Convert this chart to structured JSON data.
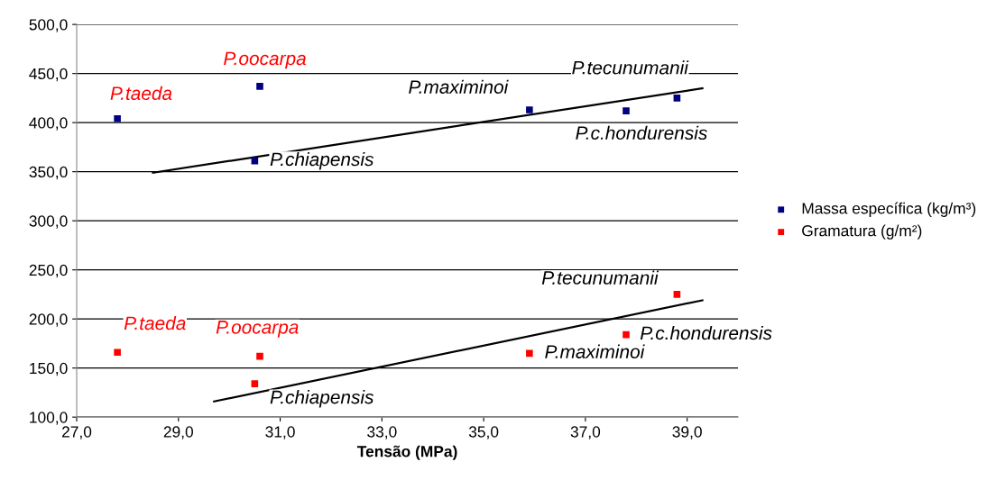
{
  "chart_data": {
    "type": "scatter",
    "xlabel": "Tensão (MPa)",
    "xlim": [
      27,
      40
    ],
    "xticks": [
      {
        "value": 27,
        "label": "27,0"
      },
      {
        "value": 29,
        "label": "29,0"
      },
      {
        "value": 31,
        "label": "31,0"
      },
      {
        "value": 33,
        "label": "33,0"
      },
      {
        "value": 35,
        "label": "35,0"
      },
      {
        "value": 37,
        "label": "37,0"
      },
      {
        "value": 39,
        "label": "39,0"
      }
    ],
    "ylim": [
      100,
      500
    ],
    "yticks": [
      {
        "value": 100,
        "label": "100,0"
      },
      {
        "value": 150,
        "label": "150,0"
      },
      {
        "value": 200,
        "label": "200,0"
      },
      {
        "value": 250,
        "label": "250,0"
      },
      {
        "value": 300,
        "label": "300,0"
      },
      {
        "value": 350,
        "label": "350,0"
      },
      {
        "value": 400,
        "label": "400,0"
      },
      {
        "value": 450,
        "label": "450,0"
      },
      {
        "value": 500,
        "label": "500,0"
      }
    ],
    "grid": "y",
    "legend": "right",
    "marker": "square",
    "series": [
      {
        "name": "Massa específica (kg/m³)",
        "color": "#000080",
        "x": [
          27.8,
          30.5,
          30.6,
          35.9,
          37.8,
          38.8
        ],
        "values": [
          404,
          361,
          437,
          413,
          412,
          425
        ]
      },
      {
        "name": "Gramatura (g/m²)",
        "color": "#ff0000",
        "x": [
          27.8,
          30.5,
          30.6,
          35.9,
          37.8,
          38.8
        ],
        "values": [
          166,
          134,
          162,
          165,
          184,
          225
        ]
      },
      {
        "type": "line",
        "marker": "none",
        "color": "#000000",
        "x": [
          28.5,
          39.3
        ],
        "values": [
          349,
          435
        ]
      },
      {
        "type": "line",
        "marker": "none",
        "color": "#000000",
        "x": [
          29.7,
          39.3
        ],
        "values": [
          116,
          219
        ]
      }
    ],
    "annotations": [
      {
        "text": "P.taeda",
        "x": 27.8,
        "y": 404
      },
      {
        "text": "P.oocarpa",
        "x": 30.6,
        "y": 437
      },
      {
        "text": "P.chiapensis",
        "x": 30.5,
        "y": 361
      },
      {
        "text": "P.maximinoi",
        "x": 35.9,
        "y": 413
      },
      {
        "text": "P.tecunumanii",
        "x": 38.8,
        "y": 425
      },
      {
        "text": "P.c.hondurensis",
        "x": 37.8,
        "y": 412
      },
      {
        "text": "P.taeda",
        "x": 27.8,
        "y": 166
      },
      {
        "text": "P.oocarpa",
        "x": 30.6,
        "y": 162
      },
      {
        "text": "P.chiapensis",
        "x": 30.5,
        "y": 134
      },
      {
        "text": "P.maximinoi",
        "x": 35.9,
        "y": 165
      },
      {
        "text": "P.c.hondurensis",
        "x": 37.8,
        "y": 184
      },
      {
        "text": "P.tecunumanii",
        "x": 38.8,
        "y": 225
      }
    ]
  }
}
